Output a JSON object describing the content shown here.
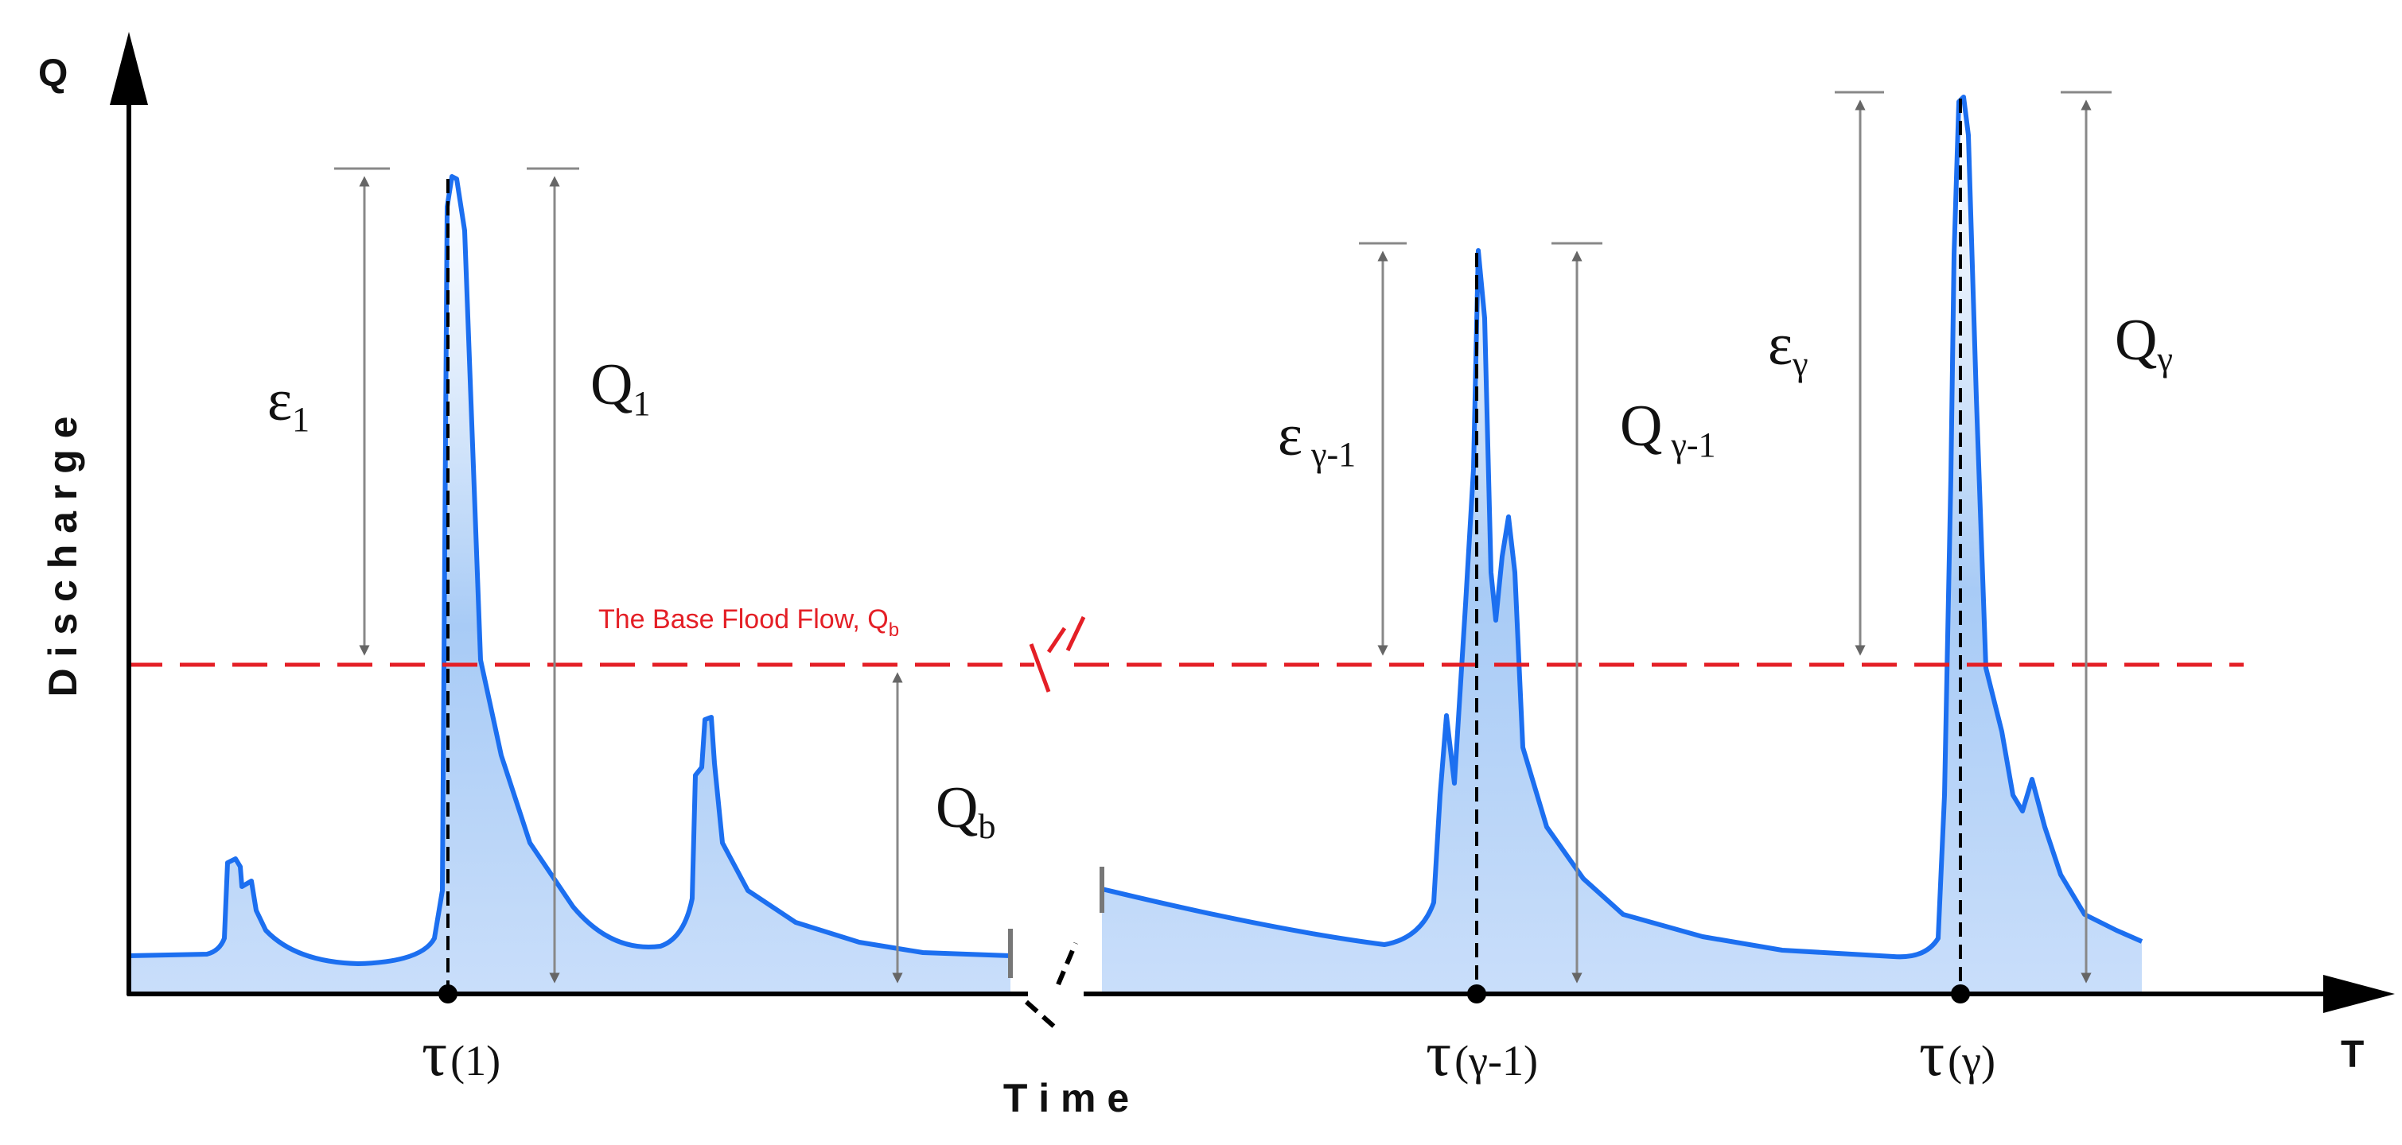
{
  "axes": {
    "y_label": "Q",
    "y_title": "D i s c h a r g e",
    "x_label": "T",
    "x_title": "T i m e"
  },
  "base_flow": {
    "label": "The Base Flood Flow, Q",
    "label_sub": "b",
    "color": "#e41f26"
  },
  "hydrograph": {
    "line_color": "#1c6ff0",
    "fill_color": "#9cc3f4"
  },
  "annotations": {
    "eps1": {
      "sym": "ε",
      "sub": "1"
    },
    "q1": {
      "sym": "Q",
      "sub": "1"
    },
    "qb": {
      "sym": "Q",
      "sub": "b"
    },
    "eps_gm1": {
      "sym": "ε",
      "sub": " γ-1"
    },
    "q_gm1": {
      "sym": "Q",
      "sub": " γ-1"
    },
    "eps_g": {
      "sym": "ε",
      "sub": "γ"
    },
    "q_g": {
      "sym": "Q",
      "sub": "γ"
    }
  },
  "ticks": {
    "t1": {
      "sym": "τ",
      "arg": "(1)"
    },
    "t_gm1": {
      "sym": "τ",
      "arg": "(γ-1)"
    },
    "t_g": {
      "sym": "τ",
      "arg": "(γ)"
    }
  }
}
